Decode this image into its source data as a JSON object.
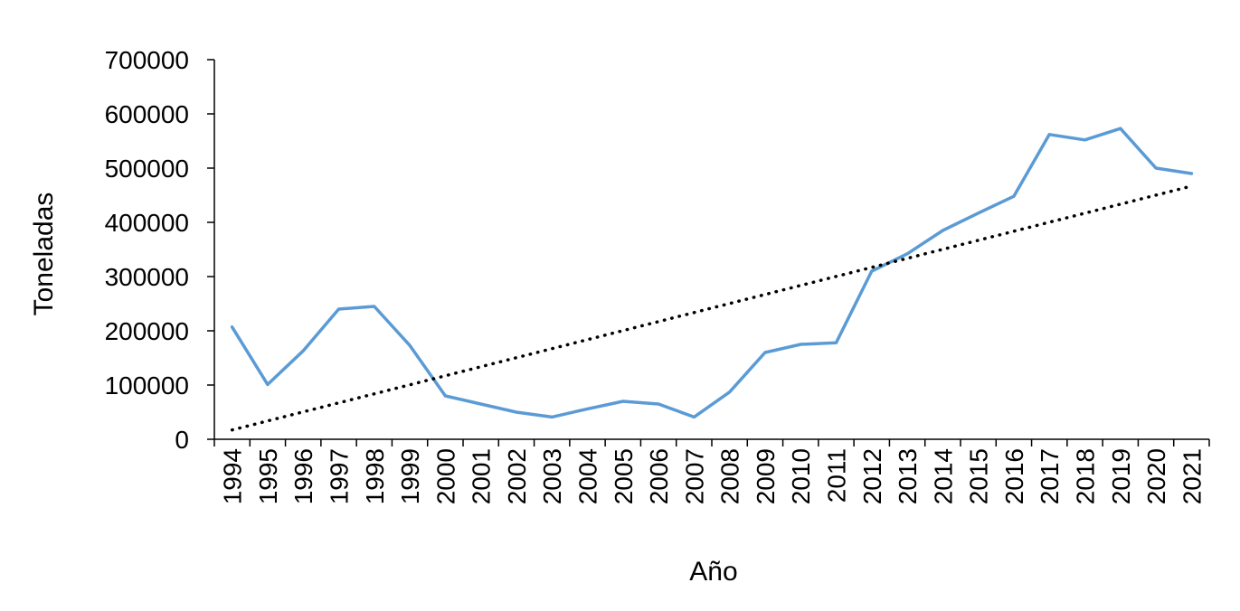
{
  "chart_data": {
    "type": "line",
    "title": "",
    "xlabel": "Año",
    "ylabel": "Toneladas",
    "ylim": [
      0,
      700000
    ],
    "yticks": [
      0,
      100000,
      200000,
      300000,
      400000,
      500000,
      600000,
      700000
    ],
    "ytick_labels": [
      "0",
      "100000",
      "200000",
      "300000",
      "400000",
      "500000",
      "600000",
      "700000"
    ],
    "categories": [
      "1994",
      "1995",
      "1996",
      "1997",
      "1998",
      "1999",
      "2000",
      "2001",
      "2002",
      "2003",
      "2004",
      "2005",
      "2006",
      "2007",
      "2008",
      "2009",
      "2010",
      "2011",
      "2012",
      "2013",
      "2014",
      "2015",
      "2016",
      "2017",
      "2018",
      "2019",
      "2020",
      "2021"
    ],
    "series": [
      {
        "values": [
          207000,
          101000,
          163000,
          240000,
          245000,
          173000,
          80000,
          65000,
          50000,
          41000,
          56000,
          70000,
          65000,
          41000,
          87000,
          160000,
          175000,
          178000,
          310000,
          342000,
          385000,
          417000,
          448000,
          562000,
          552000,
          573000,
          500000,
          490000
        ],
        "color": "#5B9BD5"
      }
    ],
    "trendline": {
      "type": "linear",
      "style": "dotted",
      "color": "#000000"
    },
    "grid": false,
    "legend": "none"
  }
}
